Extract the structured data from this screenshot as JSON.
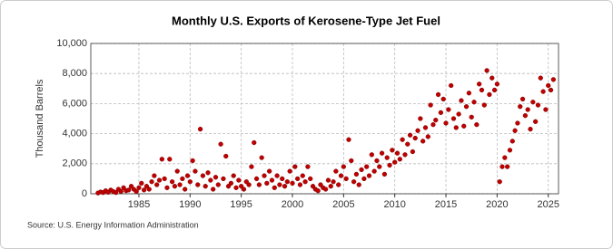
{
  "chart_data": {
    "type": "scatter",
    "title": "Monthly U.S. Exports of Kerosene-Type Jet Fuel",
    "y_label": "Thousand Barrels",
    "source": "Source: U.S. Energy Information Administration",
    "color": "#c00000",
    "grid": true,
    "xlim": [
      1980.3,
      2026
    ],
    "xticks": [
      1985,
      1990,
      1995,
      2000,
      2005,
      2010,
      2015,
      2020,
      2025
    ],
    "ylim": [
      0,
      10000
    ],
    "yticks": [
      0,
      {
        "value": 2000,
        "label": "2,000"
      },
      {
        "value": 4000,
        "label": "4,000"
      },
      {
        "value": 6000,
        "label": "6,000"
      },
      {
        "value": 8000,
        "label": "8,000"
      },
      {
        "value": 10000,
        "label": "10,000"
      }
    ],
    "x": [
      1981,
      1981.25,
      1981.5,
      1981.75,
      1982,
      1982.25,
      1982.5,
      1982.75,
      1983,
      1983.25,
      1983.5,
      1983.75,
      1984,
      1984.25,
      1984.5,
      1984.75,
      1985,
      1985.25,
      1985.5,
      1985.75,
      1986,
      1986.25,
      1986.5,
      1986.75,
      1987,
      1987.25,
      1987.5,
      1987.75,
      1988,
      1988.25,
      1988.5,
      1988.75,
      1989,
      1989.25,
      1989.5,
      1989.75,
      1990,
      1990.25,
      1990.5,
      1990.75,
      1991,
      1991.25,
      1991.5,
      1991.75,
      1992,
      1992.25,
      1992.5,
      1992.75,
      1993,
      1993.25,
      1993.5,
      1993.75,
      1994,
      1994.25,
      1994.5,
      1994.75,
      1995,
      1995.25,
      1995.5,
      1995.75,
      1996,
      1996.25,
      1996.5,
      1996.75,
      1997,
      1997.25,
      1997.5,
      1997.75,
      1998,
      1998.25,
      1998.5,
      1998.75,
      1999,
      1999.25,
      1999.5,
      1999.75,
      2000,
      2000.25,
      2000.5,
      2000.75,
      2001,
      2001.25,
      2001.5,
      2001.75,
      2002,
      2002.25,
      2002.5,
      2002.75,
      2003,
      2003.25,
      2003.5,
      2003.75,
      2004,
      2004.25,
      2004.5,
      2004.75,
      2005,
      2005.25,
      2005.5,
      2005.75,
      2006,
      2006.25,
      2006.5,
      2006.75,
      2007,
      2007.25,
      2007.5,
      2007.75,
      2008,
      2008.25,
      2008.5,
      2008.75,
      2009,
      2009.25,
      2009.5,
      2009.75,
      2010,
      2010.25,
      2010.5,
      2010.75,
      2011,
      2011.25,
      2011.5,
      2011.75,
      2012,
      2012.25,
      2012.5,
      2012.75,
      2013,
      2013.25,
      2013.5,
      2013.75,
      2014,
      2014.25,
      2014.5,
      2014.75,
      2015,
      2015.25,
      2015.5,
      2015.75,
      2016,
      2016.25,
      2016.5,
      2016.75,
      2017,
      2017.25,
      2017.5,
      2017.75,
      2018,
      2018.25,
      2018.5,
      2018.75,
      2019,
      2019.25,
      2019.5,
      2019.75,
      2020,
      2020.25,
      2020.5,
      2020.75,
      2021,
      2021.25,
      2021.5,
      2021.75,
      2022,
      2022.25,
      2022.5,
      2022.75,
      2023,
      2023.25,
      2023.5,
      2023.75,
      2024,
      2024.25,
      2024.5,
      2024.75,
      2025,
      2025.25,
      2025.5
    ],
    "values": [
      50,
      120,
      80,
      200,
      100,
      250,
      150,
      80,
      300,
      150,
      400,
      200,
      250,
      500,
      300,
      150,
      400,
      700,
      250,
      500,
      300,
      800,
      1200,
      600,
      900,
      2300,
      1000,
      400,
      2300,
      800,
      500,
      1500,
      600,
      1000,
      300,
      1200,
      800,
      2200,
      1500,
      600,
      4300,
      1200,
      500,
      1400,
      900,
      300,
      1100,
      600,
      3300,
      1000,
      2500,
      500,
      700,
      1200,
      400,
      900,
      500,
      300,
      800,
      600,
      1800,
      3400,
      1000,
      600,
      2400,
      1200,
      700,
      1500,
      900,
      400,
      1200,
      600,
      1000,
      500,
      800,
      1500,
      700,
      1800,
      1000,
      600,
      1200,
      800,
      1800,
      1000,
      500,
      300,
      200,
      600,
      400,
      300,
      900,
      500,
      800,
      1500,
      600,
      1200,
      1800,
      1000,
      3600,
      2200,
      800,
      1300,
      600,
      1600,
      1000,
      1800,
      1200,
      2600,
      1500,
      2200,
      1800,
      2700,
      1300,
      2400,
      1900,
      2900,
      2100,
      2700,
      2300,
      3600,
      2600,
      3300,
      3900,
      2800,
      3700,
      4200,
      5000,
      3500,
      4400,
      3800,
      5900,
      4600,
      4900,
      6600,
      5400,
      6300,
      4700,
      5600,
      7200,
      5000,
      4400,
      5300,
      6200,
      4500,
      5800,
      6700,
      5100,
      6100,
      4600,
      7300,
      6900,
      5900,
      8200,
      6600,
      7700,
      6900,
      7300,
      800,
      1800,
      2400,
      1800,
      2900,
      3500,
      4200,
      4700,
      5800,
      6300,
      5200,
      5600,
      4300,
      6100,
      4800,
      5900,
      7700,
      6800,
      5600,
      7200,
      6900,
      7600
    ]
  }
}
